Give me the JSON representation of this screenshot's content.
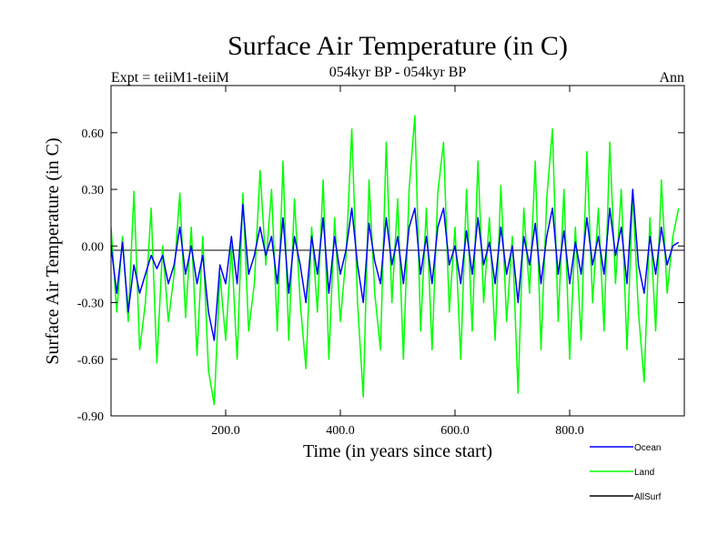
{
  "chart_data": {
    "type": "line",
    "title": "Surface Air Temperature (in C)",
    "subtitle": "054kyr BP - 054kyr BP",
    "expt_label": "Expt = teiiM1-teiiM",
    "season_label": "Ann",
    "xlabel": "Time (in years since start)",
    "ylabel": "Surface Air Temperature (in C)",
    "xlim": [
      0,
      1000
    ],
    "ylim": [
      -0.9,
      0.85
    ],
    "x_ticks": [
      200,
      400,
      600,
      800
    ],
    "x_tick_labels": [
      "200.0",
      "400.0",
      "600.0",
      "800.0"
    ],
    "y_ticks": [
      -0.9,
      -0.6,
      -0.3,
      0.0,
      0.3,
      0.6
    ],
    "y_tick_labels": [
      "-0.90",
      "-0.60",
      "-0.30",
      "0.00",
      "0.30",
      "0.60"
    ],
    "zero_line": true,
    "grid": false,
    "legend_position": "bottom-right",
    "series": [
      {
        "name": "Land",
        "color": "#00ff00",
        "x_step": 10,
        "y": [
          0.1,
          -0.35,
          0.05,
          -0.4,
          0.29,
          -0.55,
          -0.3,
          0.2,
          -0.62,
          0.0,
          -0.4,
          -0.15,
          0.28,
          -0.38,
          0.1,
          -0.58,
          0.05,
          -0.66,
          -0.84,
          -0.15,
          -0.5,
          0.0,
          -0.6,
          0.28,
          -0.45,
          -0.2,
          0.4,
          -0.1,
          0.3,
          -0.45,
          0.45,
          -0.5,
          0.25,
          -0.3,
          -0.65,
          0.1,
          -0.35,
          0.35,
          -0.6,
          0.15,
          -0.4,
          -0.05,
          0.62,
          -0.3,
          -0.8,
          0.35,
          -0.25,
          -0.55,
          0.55,
          -0.3,
          0.25,
          -0.6,
          0.3,
          0.69,
          -0.45,
          0.2,
          -0.55,
          0.28,
          0.55,
          -0.35,
          0.1,
          -0.6,
          0.3,
          -0.45,
          0.45,
          -0.3,
          0.15,
          -0.5,
          0.32,
          -0.4,
          0.05,
          -0.78,
          0.2,
          -0.25,
          0.45,
          -0.55,
          0.25,
          0.62,
          -0.4,
          0.3,
          -0.6,
          0.1,
          -0.5,
          0.5,
          -0.3,
          0.2,
          -0.45,
          0.55,
          -0.2,
          0.3,
          -0.55,
          0.28,
          -0.35,
          -0.72,
          0.15,
          -0.45,
          0.35,
          -0.25,
          0.05,
          0.2
        ]
      },
      {
        "name": "Ocean",
        "color": "#0000ff",
        "x_step": 10,
        "y": [
          0.0,
          -0.25,
          0.02,
          -0.35,
          -0.1,
          -0.25,
          -0.15,
          -0.05,
          -0.12,
          -0.05,
          -0.2,
          -0.1,
          0.1,
          -0.15,
          0.0,
          -0.2,
          -0.05,
          -0.35,
          -0.5,
          -0.1,
          -0.2,
          0.05,
          -0.2,
          0.22,
          -0.15,
          -0.05,
          0.1,
          -0.05,
          0.05,
          -0.2,
          0.15,
          -0.25,
          0.05,
          -0.1,
          -0.3,
          0.05,
          -0.15,
          0.15,
          -0.25,
          0.05,
          -0.15,
          -0.02,
          0.2,
          -0.1,
          -0.3,
          0.12,
          -0.08,
          -0.2,
          0.15,
          -0.1,
          0.05,
          -0.2,
          0.1,
          0.2,
          -0.15,
          0.05,
          -0.2,
          0.1,
          0.2,
          -0.1,
          0.0,
          -0.2,
          0.08,
          -0.15,
          0.15,
          -0.1,
          0.02,
          -0.2,
          0.1,
          -0.15,
          0.0,
          -0.3,
          0.05,
          -0.1,
          0.12,
          -0.2,
          0.05,
          0.2,
          -0.15,
          0.08,
          -0.2,
          0.02,
          -0.15,
          0.15,
          -0.1,
          0.05,
          -0.15,
          0.2,
          -0.05,
          0.1,
          -0.2,
          0.3,
          -0.1,
          -0.25,
          0.05,
          -0.15,
          0.1,
          -0.1,
          0.0,
          0.02
        ]
      },
      {
        "name": "AllSurf",
        "color": "#000000",
        "x_step": 10,
        "y": []
      }
    ]
  }
}
